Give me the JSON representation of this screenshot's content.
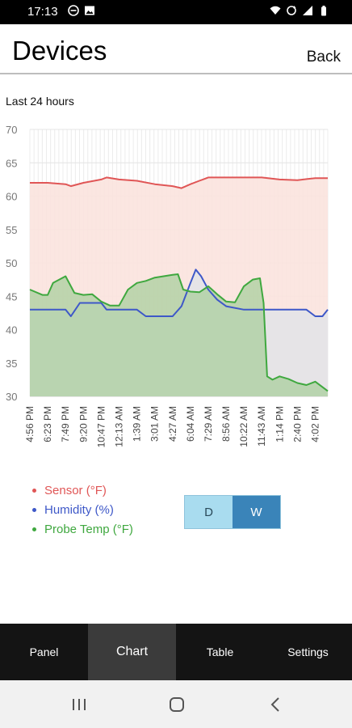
{
  "status_bar": {
    "time": "17:13",
    "left_icons": [
      "do-not-disturb-icon",
      "image-icon"
    ],
    "right_icons": [
      "wifi-icon",
      "sync-icon",
      "signal-icon",
      "battery-icon"
    ]
  },
  "header": {
    "title": "Devices",
    "back_label": "Back"
  },
  "period_label": "Last 24 hours",
  "colors": {
    "sensor": "#e05656",
    "humidity": "#3e58c8",
    "probe": "#3fa83f",
    "sensor_fill": "#fbe3de",
    "humidity_fill": "#e3e3e8",
    "probe_fill": "#a9cf9e"
  },
  "chart_data": {
    "type": "area",
    "ylim": [
      30,
      70
    ],
    "yticks": [
      30,
      35,
      40,
      45,
      50,
      55,
      60,
      65,
      70
    ],
    "x_labels": [
      "4:56 PM",
      "6:23 PM",
      "7:49 PM",
      "9:20 PM",
      "10:47 PM",
      "12:13 AM",
      "1:39 AM",
      "3:01 AM",
      "4:27 AM",
      "6:04 AM",
      "7:29 AM",
      "8:56 AM",
      "10:22 AM",
      "11:43 AM",
      "1:14 PM",
      "2:40 PM",
      "4:02 PM"
    ],
    "grid": true,
    "series": [
      {
        "name": "Sensor (°F)",
        "x": [
          0,
          1,
          2,
          2.3,
          3,
          4,
          4.3,
          5,
          6,
          7,
          8,
          8.5,
          9,
          9.5,
          10,
          11,
          12,
          13,
          14,
          15,
          16,
          16.7
        ],
        "values": [
          62,
          62,
          61.8,
          61.5,
          62,
          62.5,
          62.8,
          62.5,
          62.3,
          61.8,
          61.5,
          61.2,
          61.8,
          62.3,
          62.8,
          62.8,
          62.8,
          62.8,
          62.5,
          62.4,
          62.7,
          62.7
        ]
      },
      {
        "name": "Humidity (%)",
        "x": [
          0,
          1,
          2,
          2.3,
          2.8,
          3,
          4,
          4.3,
          5,
          6,
          6.5,
          7,
          8,
          8.5,
          9,
          9.3,
          9.6,
          10,
          10.5,
          11,
          12,
          13,
          14,
          15,
          15.5,
          16,
          16.4,
          16.7
        ],
        "values": [
          43,
          43,
          43,
          42,
          44,
          44,
          44,
          43,
          43,
          43,
          42,
          42,
          42,
          43.5,
          47,
          49,
          48,
          46,
          44.5,
          43.5,
          43,
          43,
          43,
          43,
          43,
          42,
          42,
          43
        ]
      },
      {
        "name": "Probe Temp (°F)",
        "x": [
          0,
          0.7,
          1,
          1.3,
          2,
          2.5,
          3,
          3.5,
          4,
          4.5,
          5,
          5.5,
          6,
          6.5,
          7,
          7.5,
          8,
          8.3,
          8.6,
          9,
          9.5,
          10,
          10.5,
          11,
          11.5,
          12,
          12.5,
          12.9,
          13.1,
          13.3,
          13.6,
          14,
          14.5,
          15,
          15.5,
          16,
          16.7
        ],
        "values": [
          46,
          45.2,
          45.2,
          47,
          48,
          45.5,
          45.2,
          45.3,
          44.2,
          43.6,
          43.6,
          46,
          47,
          47.3,
          47.8,
          48,
          48.2,
          48.3,
          46,
          45.7,
          45.6,
          46.5,
          45.3,
          44.2,
          44.1,
          46.5,
          47.5,
          47.7,
          44,
          33,
          32.5,
          33,
          32.6,
          32,
          31.7,
          32.2,
          30.8
        ]
      }
    ]
  },
  "legend": {
    "items": [
      {
        "label": "Sensor (°F)",
        "color": "#e05656"
      },
      {
        "label": "Humidity (%)",
        "color": "#3e58c8"
      },
      {
        "label": "Probe Temp (°F)",
        "color": "#3fa83f"
      }
    ]
  },
  "range_toggle": {
    "day_label": "D",
    "week_label": "W",
    "selected": "W"
  },
  "bottom_nav": {
    "tabs": [
      {
        "label": "Panel",
        "active": false
      },
      {
        "label": "Chart",
        "active": true
      },
      {
        "label": "Table",
        "active": false
      },
      {
        "label": "Settings",
        "active": false
      }
    ]
  },
  "system_nav": {
    "icons": [
      "recent-apps-icon",
      "home-icon",
      "back-icon"
    ]
  }
}
